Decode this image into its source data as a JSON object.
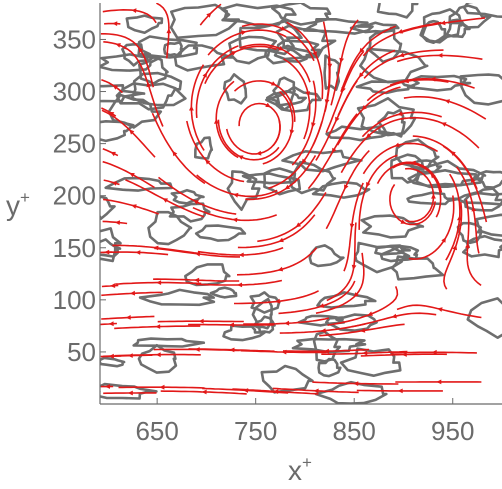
{
  "chart_data": {
    "type": "streamplot",
    "title": "",
    "xlabel": "x",
    "xlabel_sup": "+",
    "ylabel": "y",
    "ylabel_sup": "+",
    "xlim": [
      592,
      1000
    ],
    "ylim": [
      0,
      385
    ],
    "x_ticks": [
      650,
      750,
      850,
      950
    ],
    "y_ticks": [
      50,
      100,
      150,
      200,
      250,
      300,
      350
    ],
    "grid": false,
    "legend": "none",
    "colors": {
      "streamline": "#e21818",
      "contour": "#6e6e6e",
      "frame": "#6b6b6b",
      "tick_text": "#6b6b6b"
    },
    "vortices": [
      {
        "x": 752,
        "y": 262,
        "sense": "clockwise"
      },
      {
        "x": 905,
        "y": 205,
        "sense": "counterclockwise"
      }
    ]
  }
}
